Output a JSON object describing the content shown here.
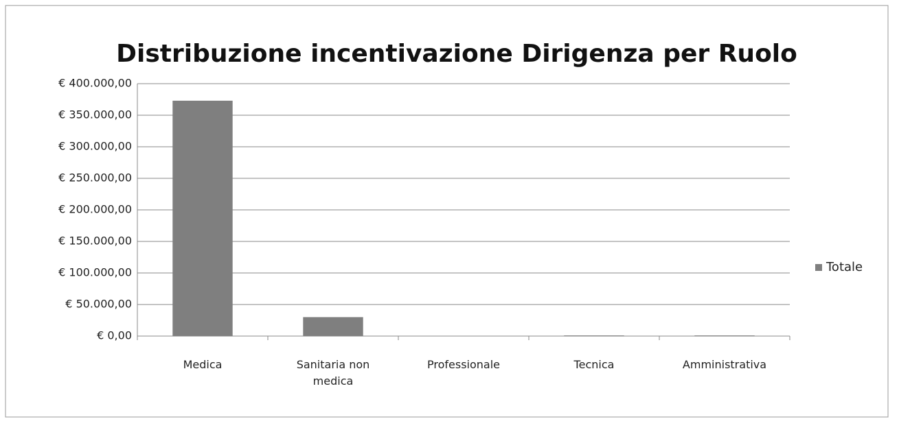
{
  "chart_data": {
    "type": "bar",
    "title": "Distribuzione incentivazione Dirigenza per Ruolo",
    "categories": [
      "Medica",
      "Sanitaria non medica",
      "Professionale",
      "Tecnica",
      "Amministrativa"
    ],
    "series": [
      {
        "name": "Totale",
        "color": "#7f7f7f",
        "values": [
          373000,
          30000,
          0,
          1000,
          1000
        ]
      }
    ],
    "ylim": [
      0,
      400000
    ],
    "yticks": [
      {
        "value": 0,
        "label": "€ 0,00"
      },
      {
        "value": 50000,
        "label": "€ 50.000,00"
      },
      {
        "value": 100000,
        "label": "€ 100.000,00"
      },
      {
        "value": 150000,
        "label": "€ 150.000,00"
      },
      {
        "value": 200000,
        "label": "€ 200.000,00"
      },
      {
        "value": 250000,
        "label": "€ 250.000,00"
      },
      {
        "value": 300000,
        "label": "€ 300.000,00"
      },
      {
        "value": 350000,
        "label": "€ 350.000,00"
      },
      {
        "value": 400000,
        "label": "€ 400.000,00"
      }
    ],
    "grid": true,
    "legend": "right"
  }
}
